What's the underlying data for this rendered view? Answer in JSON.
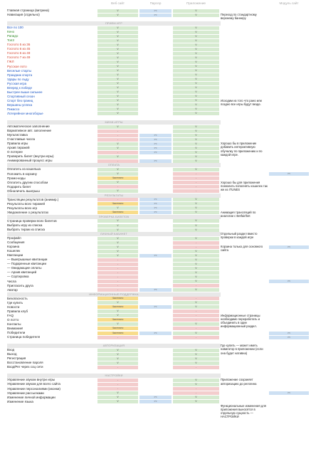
{
  "headers": [
    "Веб сайт",
    "Парсер",
    "Приложение",
    "Модуль сайт"
  ],
  "rows": [
    {
      "type": "row",
      "label": "Главная страница (витрина)",
      "c": [
        "g",
        "b",
        "g",
        ""
      ]
    },
    {
      "type": "row",
      "label": "Навигация (отдельно)",
      "c": [
        "g",
        "b",
        "g",
        ""
      ]
    },
    {
      "type": "gap"
    },
    {
      "type": "section",
      "label": "ПРИЕМ ИГР"
    },
    {
      "type": "row",
      "label": "Все по 100",
      "color": "blue",
      "c": [
        "g",
        "",
        "g",
        ""
      ]
    },
    {
      "type": "row",
      "label": "Кено",
      "color": "green",
      "c": [
        "g",
        "",
        "g",
        ""
      ]
    },
    {
      "type": "row",
      "label": "Рапидо",
      "color": "green",
      "c": [
        "g",
        "",
        "g",
        ""
      ]
    },
    {
      "type": "row",
      "label": "Топ3",
      "color": "green",
      "c": [
        "g",
        "",
        "g",
        ""
      ]
    },
    {
      "type": "row",
      "label": "Гослото 5 из 36",
      "color": "red",
      "c": [
        "g",
        "",
        "g",
        ""
      ]
    },
    {
      "type": "row",
      "label": "Гослото 6 из 45",
      "color": "red",
      "c": [
        "g",
        "",
        "g",
        ""
      ]
    },
    {
      "type": "row",
      "label": "Гослото 6 из 49",
      "color": "red",
      "c": [
        "g",
        "",
        "g",
        ""
      ]
    },
    {
      "type": "row",
      "label": "Гослото 7 из 49",
      "color": "red",
      "c": [
        "g",
        "",
        "g",
        ""
      ]
    },
    {
      "type": "row",
      "label": "ГЖЛ",
      "color": "red",
      "c": [
        "g",
        "",
        "g",
        ""
      ]
    },
    {
      "type": "row",
      "label": "Русское лото",
      "color": "red",
      "c": [
        "g",
        "",
        "g",
        ""
      ]
    },
    {
      "type": "row",
      "label": "Веселые старты",
      "color": "blue",
      "c": [
        "g",
        "",
        "g",
        ""
      ]
    },
    {
      "type": "row",
      "label": "Праздник спорта",
      "color": "blue",
      "c": [
        "g",
        "",
        "g",
        ""
      ]
    },
    {
      "type": "row",
      "label": "Удары по льду",
      "color": "blue",
      "c": [
        "g",
        "",
        "g",
        ""
      ]
    },
    {
      "type": "row",
      "label": "Русская игра",
      "color": "blue",
      "c": [
        "g",
        "",
        "g",
        ""
      ]
    },
    {
      "type": "row",
      "label": "Вперед к победе",
      "color": "blue",
      "c": [
        "g",
        "",
        "g",
        ""
      ]
    },
    {
      "type": "row",
      "label": "Быстрее выше сильнее",
      "color": "blue",
      "c": [
        "g",
        "",
        "g",
        ""
      ]
    },
    {
      "type": "row",
      "label": "Спортивный сезон",
      "color": "blue",
      "c": [
        "g",
        "",
        "g",
        ""
      ]
    },
    {
      "type": "row",
      "label": "Спорт без границ",
      "color": "blue",
      "c": [
        "g",
        "",
        "g",
        ""
      ]
    },
    {
      "type": "row",
      "label": "Вершины успеха",
      "color": "blue",
      "c": [
        "g",
        "",
        "g",
        ""
      ]
    },
    {
      "type": "row",
      "label": "Пикассо",
      "color": "blue",
      "c": [
        "g",
        "",
        "g",
        ""
      ]
    },
    {
      "type": "row",
      "label": "Лотерейное многоборье",
      "color": "blue",
      "c": [
        "g",
        "",
        "g",
        ""
      ]
    },
    {
      "type": "gap"
    },
    {
      "type": "section",
      "label": "МИНИ-ИГРЫ"
    },
    {
      "type": "row",
      "label": "Автоматическое заполнение",
      "c": [
        "g",
        "",
        "g",
        ""
      ]
    },
    {
      "type": "row",
      "label": "Вариативное авт. заполнение",
      "c": [
        "r",
        "",
        "g",
        ""
      ]
    },
    {
      "type": "row",
      "label": "Мультиставка",
      "c": [
        "r",
        "b",
        "g",
        ""
      ]
    },
    {
      "type": "row",
      "label": "Счастливые числа",
      "c": [
        "r",
        "b",
        "g",
        ""
      ]
    },
    {
      "type": "row",
      "label": "Правила игры",
      "c": [
        "g",
        "b",
        "g",
        ""
      ]
    },
    {
      "type": "row",
      "label": "Архив тиражей",
      "c": [
        "g",
        "b",
        "g",
        ""
      ]
    },
    {
      "type": "row",
      "label": "О лотерее",
      "c": [
        "r",
        "b",
        "g",
        ""
      ]
    },
    {
      "type": "row",
      "label": "Проверить билет (внутри игры)",
      "c": [
        "g",
        "",
        "g",
        ""
      ]
    },
    {
      "type": "row",
      "label": "Анимированный процесс игры",
      "c": [
        "r",
        "b",
        "g",
        ""
      ]
    },
    {
      "type": "section",
      "label": "ОПЛАТА"
    },
    {
      "type": "row",
      "label": "Оплатить из кошелька",
      "c": [
        "g",
        "",
        "g",
        ""
      ]
    },
    {
      "type": "row",
      "label": "Положить в корзину",
      "c": [
        "g",
        "",
        "r",
        "b"
      ]
    },
    {
      "type": "row",
      "label": "Промо-коды",
      "c": [
        "y",
        "",
        "r",
        ""
      ]
    },
    {
      "type": "row",
      "label": "Оплатить другим способом",
      "c": [
        "g",
        "",
        "r",
        ""
      ]
    },
    {
      "type": "row",
      "label": "Подарить билет",
      "c": [
        "r",
        "",
        "r",
        ""
      ]
    },
    {
      "type": "row",
      "label": "Обналичить выигрыш",
      "c": [
        "g",
        "",
        "r",
        ""
      ]
    },
    {
      "type": "section",
      "label": "РЕЗУЛЬТАТЫ"
    },
    {
      "type": "row",
      "label": "Трансляции результатов (анимир.)",
      "c": [
        "r",
        "b",
        "g",
        ""
      ]
    },
    {
      "type": "row",
      "label": "Результаты всех тиражей",
      "c": [
        "y",
        "b",
        "g",
        ""
      ]
    },
    {
      "type": "row",
      "label": "Результаты всех игр",
      "c": [
        "g",
        "b",
        "g",
        ""
      ]
    },
    {
      "type": "row",
      "label": "Уведомление о результатах",
      "c": [
        "y",
        "b",
        "g",
        ""
      ]
    },
    {
      "type": "section",
      "label": "ПРОВЕРКА БИЛЕТОВ"
    },
    {
      "type": "row",
      "label": "Страница проверки всех билетов",
      "c": [
        "g",
        "",
        "g",
        ""
      ]
    },
    {
      "type": "row",
      "label": "Выбрать игру из списка",
      "c": [
        "g",
        "",
        "g",
        ""
      ]
    },
    {
      "type": "row",
      "label": "Выбрать тираж из списка",
      "c": [
        "g",
        "",
        "g",
        ""
      ]
    },
    {
      "type": "section",
      "label": "ЛИЧНЫЙ КАБИНЕТ"
    },
    {
      "type": "row",
      "label": "Профайл",
      "c": [
        "g",
        "",
        "g",
        ""
      ]
    },
    {
      "type": "row",
      "label": "Сообщения",
      "c": [
        "g",
        "",
        "r",
        ""
      ]
    },
    {
      "type": "row",
      "label": "Корзина",
      "c": [
        "g",
        "",
        "r",
        "b"
      ]
    },
    {
      "type": "row",
      "label": "Кошелек",
      "c": [
        "g",
        "",
        "g",
        ""
      ]
    },
    {
      "type": "row",
      "label": "Квитанции",
      "c": [
        "g",
        "b",
        "g",
        ""
      ]
    },
    {
      "type": "row",
      "label": "— Выигрышные квитанции",
      "c": [
        "r",
        "",
        "g",
        ""
      ]
    },
    {
      "type": "row",
      "label": "— Подаренные квитанции",
      "c": [
        "r",
        "",
        "g",
        ""
      ]
    },
    {
      "type": "row",
      "label": "— Ожидающие оплаты",
      "c": [
        "r",
        "",
        "g",
        ""
      ]
    },
    {
      "type": "row",
      "label": "— Архив квитанций",
      "c": [
        "r",
        "",
        "g",
        ""
      ]
    },
    {
      "type": "row",
      "label": "— Сортировка",
      "c": [
        "r",
        "",
        "g",
        ""
      ]
    },
    {
      "type": "row",
      "label": "Числа",
      "c": [
        "r",
        "",
        "g",
        "b"
      ]
    },
    {
      "type": "row",
      "label": "Пригласить друга",
      "c": [
        "r",
        "",
        "r",
        ""
      ]
    },
    {
      "type": "row",
      "label": "Аватар",
      "c": [
        "r",
        "b",
        "g",
        ""
      ]
    },
    {
      "type": "section",
      "label": "ИНФОРМАЦИОННЫЕ/ПОДДЕРЖКА"
    },
    {
      "type": "row",
      "label": "Безопасность",
      "c": [
        "y",
        "",
        "r",
        ""
      ]
    },
    {
      "type": "row",
      "label": "Где купить",
      "c": [
        "g",
        "",
        "g",
        ""
      ]
    },
    {
      "type": "row",
      "label": "Новости",
      "c": [
        "y",
        "b",
        "g",
        ""
      ]
    },
    {
      "type": "row",
      "label": "Правила клуб",
      "c": [
        "g",
        "",
        "r",
        ""
      ]
    },
    {
      "type": "row",
      "label": "FAQ",
      "c": [
        "g",
        "",
        "r",
        ""
      ]
    },
    {
      "type": "row",
      "label": "О лотто",
      "c": [
        "y",
        "",
        "r",
        ""
      ]
    },
    {
      "type": "row",
      "label": "Контакты",
      "c": [
        "g",
        "",
        "g",
        ""
      ]
    },
    {
      "type": "row",
      "label": "Внимание!",
      "c": [
        "y",
        "",
        "r",
        ""
      ]
    },
    {
      "type": "row",
      "label": "Победители",
      "c": [
        "y",
        "b",
        "g",
        "b"
      ]
    },
    {
      "type": "row",
      "label": "Страница победителя",
      "c": [
        "r",
        "",
        "r",
        "b"
      ]
    },
    {
      "type": "gap"
    },
    {
      "type": "section",
      "label": "АВТОРИЗАЦИЯ"
    },
    {
      "type": "row",
      "label": "Вход",
      "c": [
        "g",
        "",
        "g",
        ""
      ]
    },
    {
      "type": "row",
      "label": "Выход",
      "c": [
        "g",
        "",
        "g",
        ""
      ]
    },
    {
      "type": "row",
      "label": "Регистрация",
      "c": [
        "g",
        "",
        "g",
        ""
      ]
    },
    {
      "type": "row",
      "label": "Восстановление пароля",
      "c": [
        "g",
        "",
        "g",
        ""
      ]
    },
    {
      "type": "row",
      "label": "Вход/Рег через соц сети",
      "c": [
        "r",
        "",
        "r",
        ""
      ]
    },
    {
      "type": "gap"
    },
    {
      "type": "section",
      "label": "НАСТРОЙКИ"
    },
    {
      "type": "row",
      "label": "Управление звуком внутри игры",
      "c": [
        "r",
        "",
        "g",
        ""
      ]
    },
    {
      "type": "row",
      "label": "Управление звуком для всего сайта",
      "c": [
        "r",
        "",
        "g",
        ""
      ]
    },
    {
      "type": "row",
      "label": "Управление персоналиями (иконки)",
      "c": [
        "r",
        "",
        "r",
        ""
      ]
    },
    {
      "type": "row",
      "label": "Управление рассылками",
      "c": [
        "g",
        "",
        "r",
        "b"
      ]
    },
    {
      "type": "row",
      "label": "Изменение личной информации",
      "c": [
        "g",
        "b",
        "g",
        ""
      ]
    },
    {
      "type": "row",
      "label": "Изменение языка",
      "c": [
        "g",
        "b",
        "g",
        ""
      ]
    }
  ],
  "cell_text": {
    "g": "V",
    "r": "-",
    "y": "Частично",
    "b": "><"
  },
  "notes": [
    {
      "at": 1,
      "text": "Переход по стандартному верхнему баннеру"
    },
    {
      "at": 21,
      "text": "Исходим из того что рано или поздно все игры будут везде."
    },
    {
      "at": 31,
      "text": "Хорошо бы в приложение добавить интерактивную обучалку по приложению и по каждой игре."
    },
    {
      "at": 40,
      "text": "Хорошо бы для приложения позволить пополнять кошелек так же из ITUNES"
    },
    {
      "at": 47,
      "text": "Анимация трансляций по аналогии с Betfair/bet"
    },
    {
      "at": 52,
      "text": "Отдельный раздел вместо проверки в каждой игре"
    },
    {
      "at": 55,
      "text": "Корзина только для основного сайта"
    },
    {
      "at": 71,
      "text": "Информационные страницы необходимо переработать и объединить в один информационный раздел."
    },
    {
      "at": 78,
      "text": "Где купить — может иметь навигатор в приложении (если она будет нативна)"
    },
    {
      "at": 86,
      "text": "Приложение сохраняет авторизацию до релогина"
    },
    {
      "at": 92,
      "text": "Функциональные изменения для приложения выносятся в отдельную сущность — НАСТРОЙКИ"
    }
  ]
}
